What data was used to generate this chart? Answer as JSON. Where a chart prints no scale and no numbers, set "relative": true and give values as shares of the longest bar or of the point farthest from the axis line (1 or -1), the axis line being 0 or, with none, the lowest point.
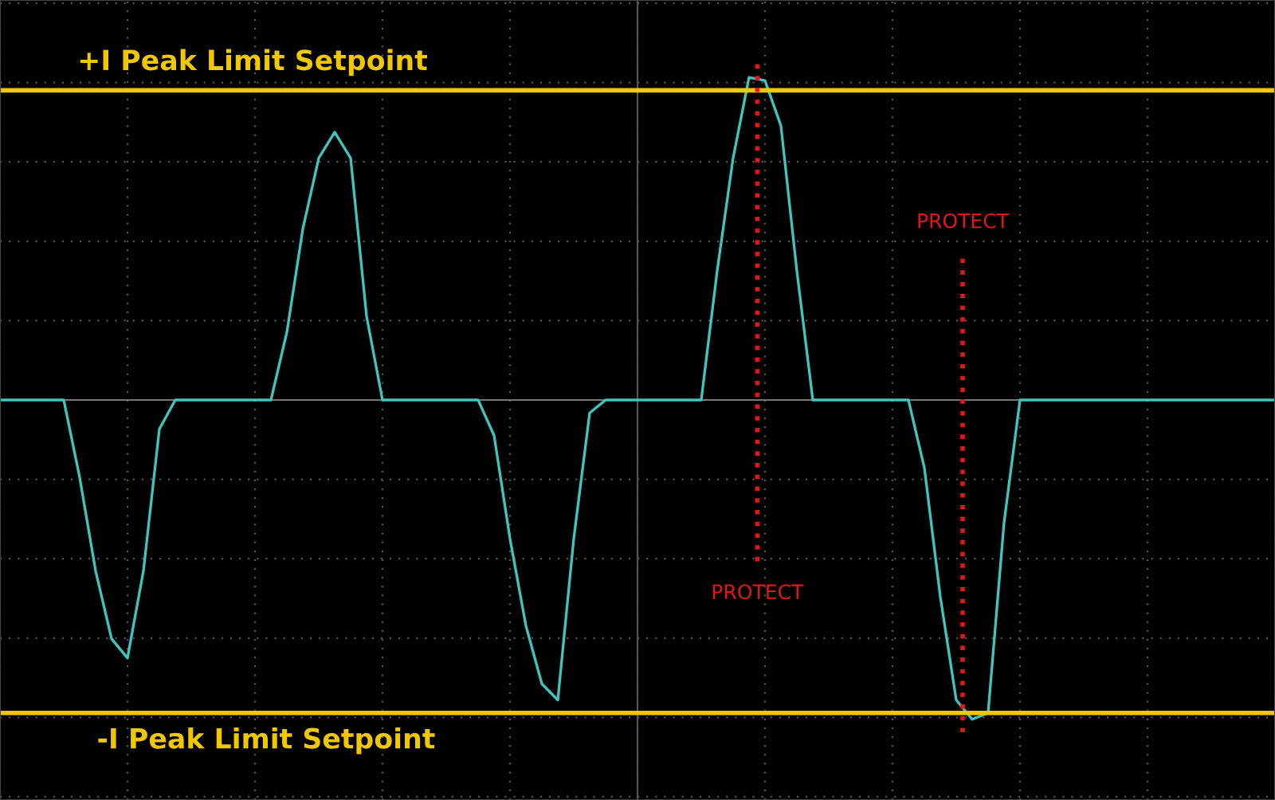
{
  "chart_data": {
    "type": "line",
    "relative": true,
    "grid": true,
    "marker": "none",
    "line_style": "solid",
    "categories": [
      null,
      null,
      null,
      null,
      null,
      null,
      null,
      null,
      null,
      null,
      null,
      null,
      null,
      null,
      null,
      null,
      null,
      null,
      null,
      null,
      null,
      null,
      null,
      null,
      null,
      null,
      null,
      null,
      null,
      null,
      null,
      null,
      null,
      null,
      null,
      null,
      null,
      null,
      null,
      null,
      null,
      null,
      null,
      null,
      null,
      null,
      null,
      null,
      null,
      null,
      null,
      null,
      null,
      null,
      null,
      null,
      null,
      null,
      null,
      null,
      null,
      null,
      null,
      null,
      null,
      null,
      null,
      null,
      null,
      null,
      null,
      null,
      null,
      null,
      null,
      null,
      null,
      null,
      null,
      null,
      null
    ],
    "series": [
      {
        "color": "#40c4c0",
        "values": [
          0,
          0,
          0,
          0,
          0,
          -0.24,
          -0.53,
          -0.74,
          -0.8,
          -0.53,
          -0.09,
          0,
          0,
          0,
          0,
          0,
          0,
          0,
          0.21,
          0.53,
          0.75,
          0.83,
          0.75,
          0.26,
          0,
          0,
          0,
          0,
          0,
          0,
          0,
          -0.11,
          -0.43,
          -0.7,
          -0.88,
          -0.93,
          -0.43,
          -0.04,
          0,
          0,
          0,
          0,
          0,
          0,
          0,
          0.4,
          0.75,
          1.0,
          0.99,
          0.85,
          0.4,
          0,
          0,
          0,
          0,
          0,
          0,
          0,
          -0.21,
          -0.61,
          -0.93,
          -0.99,
          -0.97,
          -0.38,
          0,
          0,
          0,
          0,
          0,
          0,
          0,
          0,
          0,
          0,
          0,
          0,
          0,
          0,
          0,
          0,
          0
        ]
      }
    ],
    "ref_lines": [
      {
        "axis": "y",
        "value": 0.96,
        "label": "+I Peak Limit Setpoint",
        "color": "#f0c800",
        "line_style": "solid"
      },
      {
        "axis": "y",
        "value": -0.97,
        "label": "-I Peak Limit Setpoint",
        "color": "#f0c800",
        "line_style": "solid"
      }
    ],
    "annotations": [
      "PROTECT",
      "PROTECT"
    ]
  }
}
